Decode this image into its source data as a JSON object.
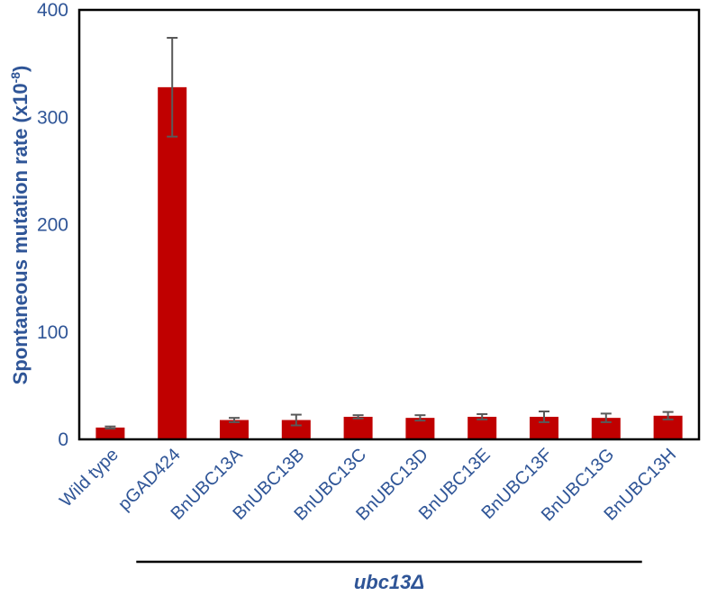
{
  "chart_data": {
    "type": "bar",
    "title": "",
    "ylabel": "Spontaneous mutation rate (x10",
    "ylabel_sup": "-8",
    "ylabel_close": ")",
    "ylim": [
      0,
      400
    ],
    "yticks": [
      0,
      100,
      200,
      300,
      400
    ],
    "grid": false,
    "categories": [
      "Wild type",
      "pGAD424",
      "BnUBC13A",
      "BnUBC13B",
      "BnUBC13C",
      "BnUBC13D",
      "BnUBC13E",
      "BnUBC13F",
      "BnUBC13G",
      "BnUBC13H"
    ],
    "values": [
      11,
      328,
      18,
      18,
      21,
      20,
      21,
      21,
      20,
      22
    ],
    "errors": [
      1,
      46,
      2,
      5,
      1.5,
      2.5,
      2.5,
      5,
      4,
      3.5
    ],
    "bar_color": "#C00000",
    "error_color": "#595959",
    "group_label": "ubc13Δ",
    "group_range": [
      1,
      8
    ]
  }
}
